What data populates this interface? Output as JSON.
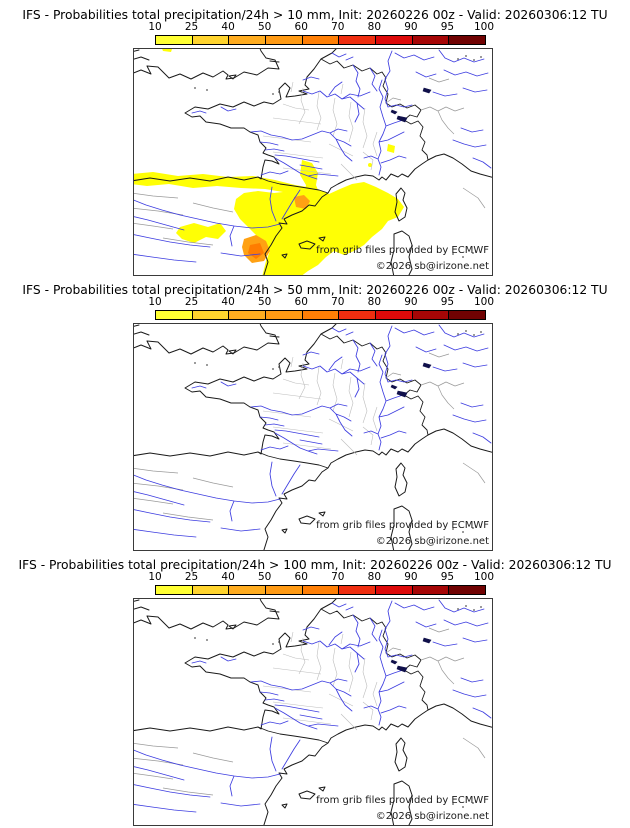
{
  "page": {
    "background": "#ffffff"
  },
  "colorbar": {
    "tick_labels": [
      "10",
      "25",
      "40",
      "50",
      "60",
      "70",
      "80",
      "90",
      "95",
      "100"
    ],
    "segment_colors": [
      "#ffff33",
      "#ffd42e",
      "#ffac20",
      "#ff9a14",
      "#ff7f06",
      "#ef2e10",
      "#dd0a0a",
      "#a60606",
      "#700202"
    ],
    "units": "%"
  },
  "panels": [
    {
      "title": "IFS - Probabilities total precipitation/24h > 10 mm, Init: 20260226 00z - Valid: 20260306:12 TU",
      "threshold_mm": 10,
      "has_overlay": true,
      "overlay_regions": [
        "yellow band (10-40%) along the Pyrenees from the Atlantic edge to the Mediterranean",
        "large yellow area (10-40%) over Catalonia, Gulf of Lion and Balearic sea",
        "yellow arm up the lower Rhone valley and small spot near the western Alps",
        "orange cores (40-60%) near the Ebro delta and Valencia coast",
        "deep orange core (60-70%) on the Valencia coast"
      ]
    },
    {
      "title": "IFS - Probabilities total precipitation/24h > 50 mm, Init: 20260226 00z - Valid: 20260306:12 TU",
      "threshold_mm": 50,
      "has_overlay": false,
      "overlay_regions": []
    },
    {
      "title": "IFS - Probabilities total precipitation/24h > 100 mm, Init: 20260226 00z - Valid: 20260306:12 TU",
      "threshold_mm": 100,
      "has_overlay": false,
      "overlay_regions": []
    }
  ],
  "map": {
    "attribution_line1": "from grib files provided by ECMWF",
    "attribution_line2": "©2026 sb@irizone.net",
    "coast_color": "#1a1a1a",
    "river_color": "#3d3de0",
    "department_border_color": "#bdbdbd",
    "overlay_colors": {
      "yellow": "#ffff05",
      "orange": "#ffa113",
      "deep_orange": "#ff7c00"
    }
  }
}
